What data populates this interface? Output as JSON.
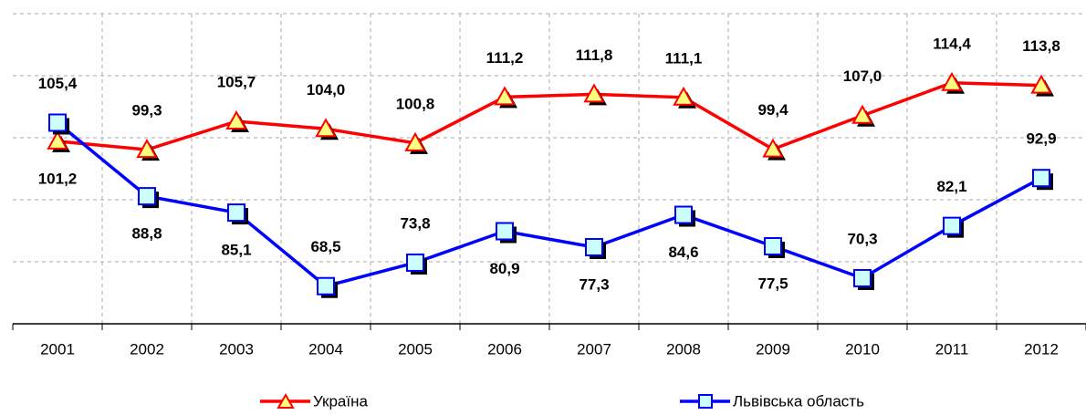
{
  "chart_data": {
    "type": "line",
    "categories": [
      "2001",
      "2002",
      "2003",
      "2004",
      "2005",
      "2006",
      "2007",
      "2008",
      "2009",
      "2010",
      "2011",
      "2012"
    ],
    "series": [
      {
        "name": "Україна",
        "color": "#ff0000",
        "marker": "triangle",
        "values": [
          101.2,
          99.3,
          105.7,
          104.0,
          100.8,
          111.2,
          111.8,
          111.1,
          99.4,
          107.0,
          114.4,
          113.8
        ],
        "value_labels": [
          "101,2",
          "99,3",
          "105,7",
          "104,0",
          "100,8",
          "111,2",
          "111,8",
          "111,1",
          "99,4",
          "107,0",
          "114,4",
          "113,8"
        ]
      },
      {
        "name": "Львівська область",
        "color": "#0000ff",
        "marker": "square",
        "values": [
          105.4,
          88.8,
          85.1,
          68.5,
          73.8,
          80.9,
          77.3,
          84.6,
          77.5,
          70.3,
          82.1,
          92.9
        ],
        "value_labels": [
          "105,4",
          "88,8",
          "85,1",
          "68,5",
          "73,8",
          "80,9",
          "77,3",
          "84,6",
          "77,5",
          "70,3",
          "82,1",
          "92,9"
        ]
      }
    ],
    "ylim": [
      60,
      130
    ],
    "yticks": [
      74,
      88,
      102,
      116,
      130
    ],
    "grid": true,
    "legend": "bottom"
  }
}
